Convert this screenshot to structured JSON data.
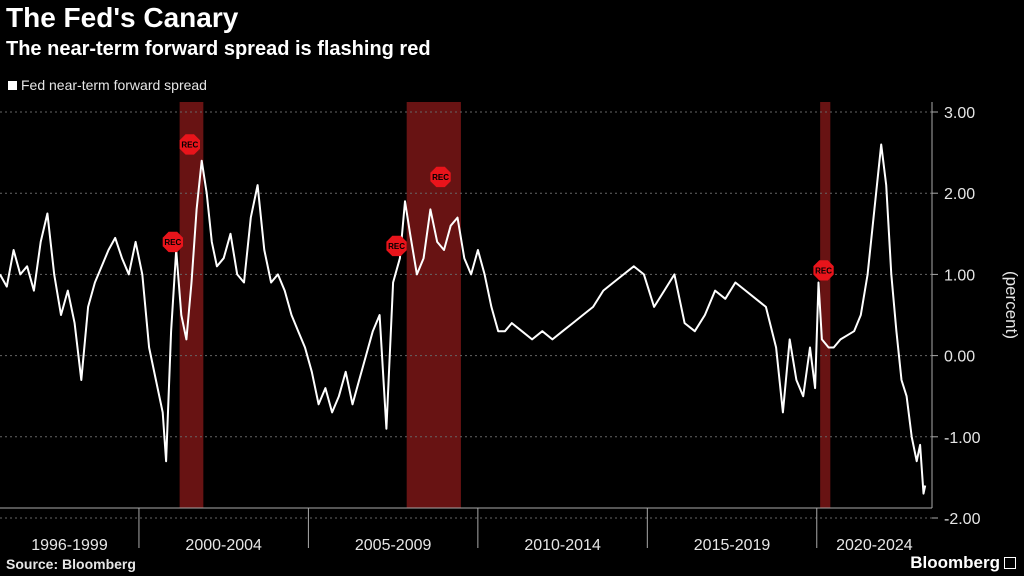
{
  "header": {
    "title": "The Fed's Canary",
    "subtitle": "The near-term forward spread is flashing red"
  },
  "legend": {
    "label": "Fed near-term forward spread"
  },
  "footer": {
    "source": "Source: Bloomberg",
    "brand": "Bloomberg"
  },
  "colors": {
    "background": "#000000",
    "line": "#ffffff",
    "recession": "#8b1a1a",
    "marker": "#e8141b"
  },
  "chart_data": {
    "type": "line",
    "title": "The Fed's Canary",
    "subtitle": "The near-term forward spread is flashing red",
    "ylabel": "(percent)",
    "ylim": [
      -2.0,
      3.0
    ],
    "xlim": [
      1995.9,
      2023.4
    ],
    "y_ticks": [
      "3.00",
      "2.00",
      "1.00",
      "0.00",
      "-1.00",
      "-2.00"
    ],
    "y_tick_values": [
      3,
      2,
      1,
      0,
      -1,
      -2
    ],
    "x_tick_labels": [
      "1996-1999",
      "2000-2004",
      "2005-2009",
      "2010-2014",
      "2015-2019",
      "2020-2024"
    ],
    "x_group_bounds": [
      [
        1995.9,
        2000.0
      ],
      [
        2000.0,
        2005.0
      ],
      [
        2005.0,
        2010.0
      ],
      [
        2010.0,
        2015.0
      ],
      [
        2015.0,
        2020.0
      ],
      [
        2020.0,
        2023.4
      ]
    ],
    "grid": true,
    "legend_position": "top-left",
    "recessions": [
      [
        2001.2,
        2001.9
      ],
      [
        2007.9,
        2009.5
      ],
      [
        2020.1,
        2020.4
      ]
    ],
    "annotations": [
      {
        "label": "REC",
        "x": 2001.0,
        "y": 1.4
      },
      {
        "label": "REC",
        "x": 2001.5,
        "y": 2.6
      },
      {
        "label": "REC",
        "x": 2007.6,
        "y": 1.35
      },
      {
        "label": "REC",
        "x": 2008.9,
        "y": 2.2
      },
      {
        "label": "REC",
        "x": 2020.2,
        "y": 1.05
      }
    ],
    "series": [
      {
        "name": "Fed near-term forward spread",
        "x": [
          1995.9,
          1996.1,
          1996.3,
          1996.5,
          1996.7,
          1996.9,
          1997.1,
          1997.3,
          1997.5,
          1997.7,
          1997.9,
          1998.1,
          1998.3,
          1998.5,
          1998.7,
          1998.9,
          1999.1,
          1999.3,
          1999.5,
          1999.7,
          1999.9,
          2000.1,
          2000.3,
          2000.5,
          2000.7,
          2000.8,
          2000.95,
          2001.1,
          2001.25,
          2001.4,
          2001.55,
          2001.7,
          2001.85,
          2002.0,
          2002.15,
          2002.3,
          2002.5,
          2002.7,
          2002.9,
          2003.1,
          2003.3,
          2003.5,
          2003.7,
          2003.9,
          2004.1,
          2004.3,
          2004.5,
          2004.7,
          2004.9,
          2005.1,
          2005.3,
          2005.5,
          2005.7,
          2005.9,
          2006.1,
          2006.3,
          2006.5,
          2006.7,
          2006.9,
          2007.1,
          2007.3,
          2007.5,
          2007.7,
          2007.85,
          2008.0,
          2008.2,
          2008.4,
          2008.6,
          2008.8,
          2009.0,
          2009.2,
          2009.4,
          2009.6,
          2009.8,
          2010.0,
          2010.2,
          2010.4,
          2010.6,
          2010.8,
          2011.0,
          2011.3,
          2011.6,
          2011.9,
          2012.2,
          2012.5,
          2012.8,
          2013.1,
          2013.4,
          2013.7,
          2014.0,
          2014.3,
          2014.6,
          2014.9,
          2015.2,
          2015.5,
          2015.8,
          2016.1,
          2016.4,
          2016.7,
          2017.0,
          2017.3,
          2017.6,
          2017.9,
          2018.2,
          2018.5,
          2018.8,
          2019.0,
          2019.2,
          2019.4,
          2019.6,
          2019.8,
          2019.95,
          2020.05,
          2020.15,
          2020.25,
          2020.35,
          2020.5,
          2020.7,
          2020.9,
          2021.1,
          2021.3,
          2021.5,
          2021.7,
          2021.9,
          2022.05,
          2022.2,
          2022.35,
          2022.5,
          2022.65,
          2022.8,
          2022.95,
          2023.05,
          2023.15,
          2023.2
        ],
        "values": [
          1.0,
          0.85,
          1.3,
          1.0,
          1.1,
          0.8,
          1.4,
          1.75,
          1.0,
          0.5,
          0.8,
          0.4,
          -0.3,
          0.6,
          0.9,
          1.1,
          1.3,
          1.45,
          1.2,
          1.0,
          1.4,
          1.0,
          0.1,
          -0.3,
          -0.7,
          -1.3,
          0.3,
          1.3,
          0.5,
          0.2,
          0.9,
          1.8,
          2.4,
          2.0,
          1.4,
          1.1,
          1.2,
          1.5,
          1.0,
          0.9,
          1.7,
          2.1,
          1.3,
          0.9,
          1.0,
          0.8,
          0.5,
          0.3,
          0.1,
          -0.2,
          -0.6,
          -0.4,
          -0.7,
          -0.5,
          -0.2,
          -0.6,
          -0.3,
          0.0,
          0.3,
          0.5,
          -0.9,
          0.9,
          1.2,
          1.9,
          1.5,
          1.0,
          1.2,
          1.8,
          1.4,
          1.3,
          1.6,
          1.7,
          1.2,
          1.0,
          1.3,
          1.0,
          0.6,
          0.3,
          0.3,
          0.4,
          0.3,
          0.2,
          0.3,
          0.2,
          0.3,
          0.4,
          0.5,
          0.6,
          0.8,
          0.9,
          1.0,
          1.1,
          1.0,
          0.6,
          0.8,
          1.0,
          0.4,
          0.3,
          0.5,
          0.8,
          0.7,
          0.9,
          0.8,
          0.7,
          0.6,
          0.1,
          -0.7,
          0.2,
          -0.3,
          -0.5,
          0.1,
          -0.4,
          0.9,
          0.2,
          0.15,
          0.1,
          0.1,
          0.2,
          0.25,
          0.3,
          0.5,
          1.0,
          1.8,
          2.6,
          2.1,
          1.0,
          0.3,
          -0.3,
          -0.5,
          -1.0,
          -1.3,
          -1.1,
          -1.7,
          -1.6
        ]
      }
    ]
  }
}
